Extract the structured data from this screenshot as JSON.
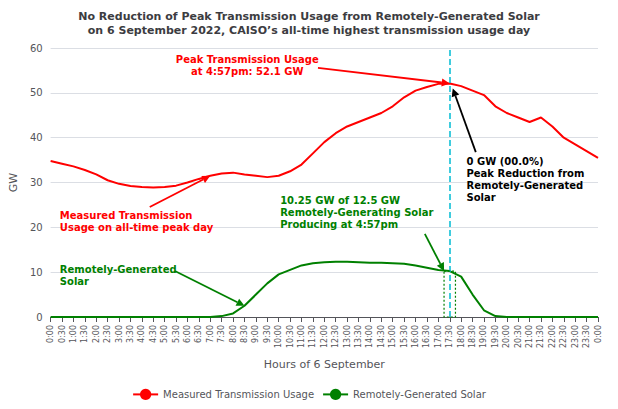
{
  "chart_data": {
    "type": "line",
    "title": "No Reduction of Peak Transmission Usage from Remotely-Generated Solar\non 6 September 2022, CAISO’s all-time highest transmission usage day",
    "x_label": "Hours of 6 September",
    "y_label": "GW",
    "categories": [
      "0:00",
      "0:30",
      "1:00",
      "1:30",
      "2:00",
      "2:30",
      "3:00",
      "3:30",
      "4:00",
      "4:30",
      "5:00",
      "5:30",
      "6:00",
      "6:30",
      "7:00",
      "7:30",
      "8:00",
      "8:30",
      "9:00",
      "9:30",
      "10:00",
      "10:30",
      "11:00",
      "11:30",
      "12:00",
      "12:30",
      "13:00",
      "13:30",
      "14:00",
      "14:30",
      "15:00",
      "15:30",
      "16:00",
      "16:30",
      "17:00",
      "17:30",
      "18:00",
      "18:30",
      "19:00",
      "19:30",
      "20:00",
      "20:30",
      "21:00",
      "21:30",
      "22:00",
      "22:30",
      "23:00",
      "23:30",
      "0:00"
    ],
    "series": [
      {
        "name": "Measured Transmission Usage",
        "color": "#ff0000",
        "values": [
          34.8,
          34.2,
          33.6,
          32.8,
          31.8,
          30.5,
          29.7,
          29.2,
          29.0,
          28.9,
          29.0,
          29.3,
          30.0,
          30.8,
          31.5,
          32.0,
          32.2,
          31.8,
          31.5,
          31.2,
          31.5,
          32.5,
          34.0,
          36.5,
          39.0,
          41.0,
          42.5,
          43.5,
          44.5,
          45.5,
          47.0,
          49.0,
          50.5,
          51.3,
          52.0,
          52.1,
          51.5,
          50.5,
          49.5,
          47.0,
          45.5,
          44.5,
          43.5,
          44.5,
          42.5,
          40.0,
          38.5,
          37.0,
          35.5
        ]
      },
      {
        "name": "Remotely-Generated Solar",
        "color": "#008000",
        "values": [
          0.0,
          0.0,
          0.0,
          0.0,
          0.0,
          0.0,
          0.0,
          0.0,
          0.0,
          0.0,
          0.0,
          0.0,
          0.0,
          0.0,
          0.0,
          0.2,
          0.8,
          2.5,
          5.0,
          7.5,
          9.5,
          10.5,
          11.5,
          12.0,
          12.2,
          12.3,
          12.3,
          12.2,
          12.1,
          12.1,
          12.0,
          11.9,
          11.5,
          11.0,
          10.5,
          10.25,
          9.0,
          5.0,
          1.5,
          0.2,
          0.0,
          0.0,
          0.0,
          0.0,
          0.0,
          0.0,
          0.0,
          0.0,
          0.0
        ]
      }
    ],
    "ylim": [
      0,
      60
    ],
    "yticks": [
      0,
      10,
      20,
      30,
      40,
      50,
      60
    ],
    "grid": true,
    "legend": "bottom",
    "reference_line": {
      "x": "17:30",
      "color": "#00bcd4",
      "line_style": "dashed"
    },
    "annotations": [
      {
        "text": "Peak Transmission Usage\nat 4:57pm: 52.1 GW",
        "color": "#ff0000",
        "x": "17:30",
        "y": 52.1
      },
      {
        "text": "Measured Transmission\nUsage on all-time peak day",
        "color": "#ff0000",
        "x": "7:00",
        "y": 31.5
      },
      {
        "text": "Remotely-Generated\nSolar",
        "color": "#008000",
        "x": "8:30",
        "y": 2.5
      },
      {
        "text": "10.25 GW of 12.5 GW\nRemotely-Generating Solar\nProducing at 4:57pm",
        "color": "#008000",
        "x": "17:30",
        "y": 10.25,
        "marker": "box"
      },
      {
        "text": "0 GW (00.0%)\nPeak Reduction from\nRemotely-Generated\nSolar",
        "color": "#000000",
        "x": "17:30",
        "y": 52.1
      }
    ]
  }
}
